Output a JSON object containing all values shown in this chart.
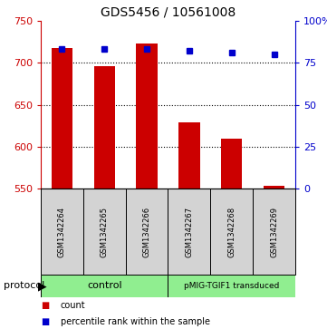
{
  "title": "GDS5456 / 10561008",
  "samples": [
    "GSM1342264",
    "GSM1342265",
    "GSM1342266",
    "GSM1342267",
    "GSM1342268",
    "GSM1342269"
  ],
  "counts": [
    718,
    696,
    723,
    629,
    610,
    553
  ],
  "percentiles": [
    83,
    83,
    83,
    82,
    81,
    80
  ],
  "ylim_left": [
    550,
    750
  ],
  "ylim_right": [
    0,
    100
  ],
  "yticks_left": [
    550,
    600,
    650,
    700,
    750
  ],
  "yticks_right": [
    0,
    25,
    50,
    75,
    100
  ],
  "ytick_labels_right": [
    "0",
    "25",
    "50",
    "75",
    "100%"
  ],
  "bar_color": "#cc0000",
  "dot_color": "#0000cc",
  "bar_bottom": 550,
  "protocol_labels": [
    "control",
    "pMIG-TGIF1 transduced"
  ],
  "protocol_color": "#90ee90",
  "sample_bg_color": "#d3d3d3",
  "legend_bar_label": "count",
  "legend_dot_label": "percentile rank within the sample",
  "left_axis_color": "#cc0000",
  "right_axis_color": "#0000cc",
  "grid_yticks": [
    600,
    650,
    700
  ],
  "bar_width": 0.5
}
